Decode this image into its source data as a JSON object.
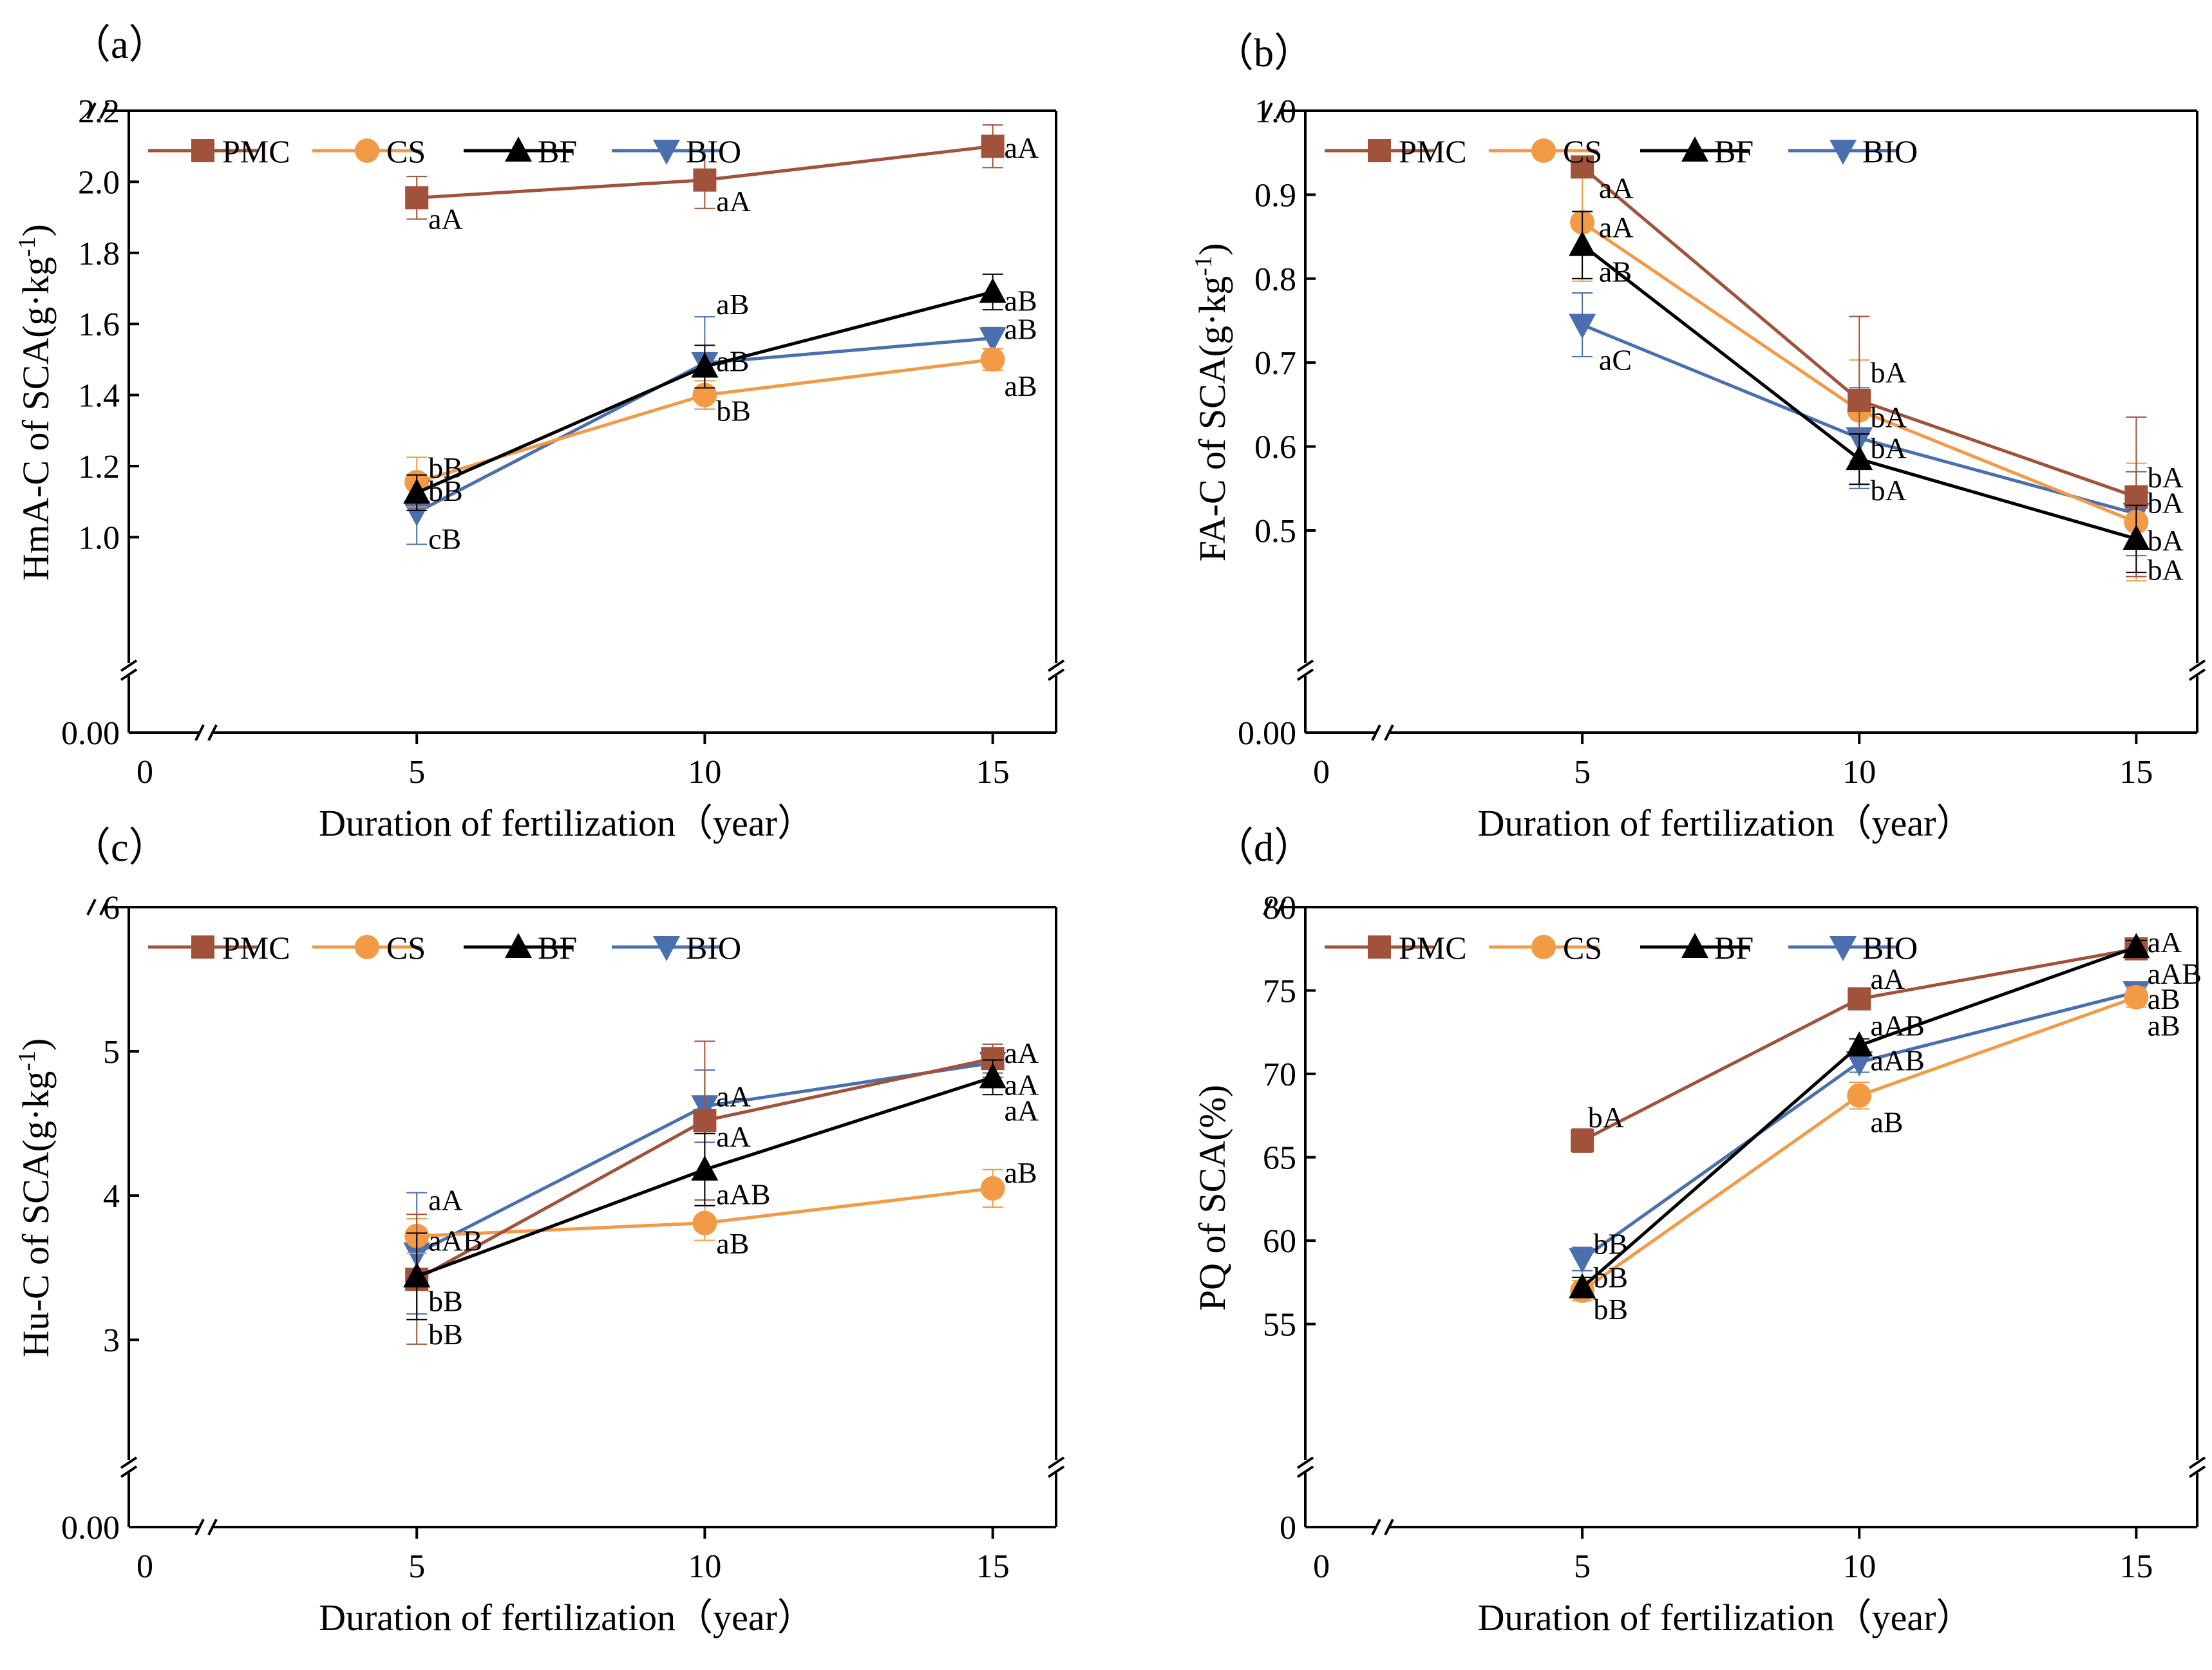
{
  "colors": {
    "PMC": "#A0523A",
    "CS": "#F29A45",
    "BF": "#000000",
    "BIO": "#4A6FAE"
  },
  "chart_data": [
    {
      "type": "line",
      "panel_label": "（a）",
      "xlabel": "Duration of  fertilization（year）",
      "ylabel": "HmA-C of SCA(g·kg",
      "ylabel_sup": "-1",
      "ylabel_close": ")",
      "x": [
        5,
        10,
        15
      ],
      "xlim": [
        0,
        16.1
      ],
      "xticks": [
        0,
        5,
        10,
        15
      ],
      "xtick_labels": [
        "0",
        "5",
        "10",
        "15"
      ],
      "ylim": [
        0.7,
        2.2
      ],
      "yticks": [
        1.0,
        1.2,
        1.4,
        1.6,
        1.8,
        2.0,
        2.2
      ],
      "ytick_labels": [
        "1.0",
        "1.2",
        "1.4",
        "1.6",
        "1.8",
        "2.0",
        "2.2"
      ],
      "y_zero_label": "0.00",
      "axis_break": true,
      "legend": "top-left",
      "series": [
        {
          "name": "PMC",
          "marker": "square",
          "values": [
            1.955,
            2.005,
            2.1
          ],
          "errors": [
            0.06,
            0.08,
            0.06
          ],
          "labels": [
            "aA",
            "aA",
            "aA"
          ]
        },
        {
          "name": "CS",
          "marker": "circle",
          "values": [
            1.155,
            1.4,
            1.5
          ],
          "errors": [
            0.07,
            0.04,
            0.03
          ],
          "labels": [
            "bB",
            "bB",
            "aB"
          ]
        },
        {
          "name": "BF",
          "marker": "triangle-up",
          "values": [
            1.125,
            1.48,
            1.69
          ],
          "errors": [
            0.05,
            0.06,
            0.05
          ],
          "labels": [
            "bB",
            "aB",
            "aB"
          ]
        },
        {
          "name": "BIO",
          "marker": "triangle-down",
          "values": [
            1.07,
            1.49,
            1.56
          ],
          "errors": [
            0.09,
            0.13,
            0.03
          ],
          "labels": [
            "cB",
            "aB",
            "aB"
          ]
        }
      ],
      "annotations": [
        {
          "text": "aA",
          "x": 5.2,
          "y": 1.9
        },
        {
          "text": "bB",
          "x": 5.2,
          "y": 1.2
        },
        {
          "text": "bB",
          "x": 5.2,
          "y": 1.135
        },
        {
          "text": "cB",
          "x": 5.2,
          "y": 1.0
        },
        {
          "text": "aA",
          "x": 10.2,
          "y": 1.95
        },
        {
          "text": "aB",
          "x": 10.2,
          "y": 1.66
        },
        {
          "text": "aB",
          "x": 10.2,
          "y": 1.5
        },
        {
          "text": "bB",
          "x": 10.2,
          "y": 1.36
        },
        {
          "text": "aA",
          "x": 15.2,
          "y": 2.1
        },
        {
          "text": "aB",
          "x": 15.2,
          "y": 1.67
        },
        {
          "text": "aB",
          "x": 15.2,
          "y": 1.59
        },
        {
          "text": "aB",
          "x": 15.2,
          "y": 1.43
        }
      ]
    },
    {
      "type": "line",
      "panel_label": "（b）",
      "xlabel": "Duration of  fertilization（year）",
      "ylabel": "FA-C of SCA(g·kg",
      "ylabel_sup": "-1",
      "ylabel_close": ")",
      "x": [
        5,
        10,
        15
      ],
      "xlim": [
        0,
        16.1
      ],
      "xticks": [
        0,
        5,
        10,
        15
      ],
      "xtick_labels": [
        "0",
        "5",
        "10",
        "15"
      ],
      "ylim": [
        0.365,
        1.0
      ],
      "yticks": [
        0.5,
        0.6,
        0.7,
        0.8,
        0.9,
        1.0
      ],
      "ytick_labels": [
        "0.5",
        "0.6",
        "0.7",
        "0.8",
        "0.9",
        "1.0"
      ],
      "y_zero_label": "0.00",
      "axis_break": true,
      "legend": "top-left",
      "series": [
        {
          "name": "PMC",
          "marker": "square",
          "values": [
            0.933,
            0.655,
            0.54
          ],
          "errors": [
            0.01,
            0.1,
            0.095
          ],
          "labels": [
            "aA",
            "bA",
            "bA"
          ]
        },
        {
          "name": "CS",
          "marker": "circle",
          "values": [
            0.867,
            0.643,
            0.51
          ],
          "errors": [
            0.07,
            0.06,
            0.07
          ],
          "labels": [
            "aA",
            "bA",
            "bA"
          ]
        },
        {
          "name": "BF",
          "marker": "triangle-up",
          "values": [
            0.84,
            0.585,
            0.49
          ],
          "errors": [
            0.04,
            0.03,
            0.04
          ],
          "labels": [
            "aB",
            "bA",
            "bA"
          ]
        },
        {
          "name": "BIO",
          "marker": "triangle-down",
          "values": [
            0.745,
            0.61,
            0.52
          ],
          "errors": [
            0.038,
            0.06,
            0.05
          ],
          "labels": [
            "aC",
            "bA",
            "bA"
          ]
        }
      ],
      "annotations": [
        {
          "text": "aA",
          "x": 5.3,
          "y": 0.91
        },
        {
          "text": "aA",
          "x": 5.3,
          "y": 0.863
        },
        {
          "text": "aB",
          "x": 5.3,
          "y": 0.81
        },
        {
          "text": "aC",
          "x": 5.3,
          "y": 0.705
        },
        {
          "text": "bA",
          "x": 10.2,
          "y": 0.69
        },
        {
          "text": "bA",
          "x": 10.2,
          "y": 0.637
        },
        {
          "text": "bA",
          "x": 10.2,
          "y": 0.6
        },
        {
          "text": "bA",
          "x": 10.2,
          "y": 0.55
        },
        {
          "text": "bA",
          "x": 15.2,
          "y": 0.565
        },
        {
          "text": "bA",
          "x": 15.2,
          "y": 0.535
        },
        {
          "text": "bA",
          "x": 15.2,
          "y": 0.49
        },
        {
          "text": "bA",
          "x": 15.2,
          "y": 0.455
        }
      ]
    },
    {
      "type": "line",
      "panel_label": "（c）",
      "xlabel": "Duration of  fertilization（year）",
      "ylabel": "Hu-C of SCA(g·kg",
      "ylabel_sup": "-1",
      "ylabel_close": ")",
      "x": [
        5,
        10,
        15
      ],
      "xlim": [
        0,
        16.1
      ],
      "xticks": [
        0,
        5,
        10,
        15
      ],
      "xtick_labels": [
        "0",
        "5",
        "10",
        "15"
      ],
      "ylim": [
        2.3,
        6.0
      ],
      "yticks": [
        3,
        4,
        5,
        6
      ],
      "ytick_labels": [
        "3",
        "4",
        "5",
        "6"
      ],
      "y_zero_label": "0.00",
      "axis_break": true,
      "legend": "top-left",
      "series": [
        {
          "name": "PMC",
          "marker": "square",
          "values": [
            3.42,
            4.52,
            4.95
          ],
          "errors": [
            0.45,
            0.55,
            0.1
          ],
          "labels": [
            "bB",
            "aA",
            "aA"
          ]
        },
        {
          "name": "CS",
          "marker": "circle",
          "values": [
            3.72,
            3.81,
            4.05
          ],
          "errors": [
            0.12,
            0.12,
            0.13
          ],
          "labels": [
            "aAB",
            "aB",
            "aB"
          ]
        },
        {
          "name": "BF",
          "marker": "triangle-up",
          "values": [
            3.44,
            4.18,
            4.82
          ],
          "errors": [
            0.3,
            0.25,
            0.12
          ],
          "labels": [
            "bB",
            "aAB",
            "aA"
          ]
        },
        {
          "name": "BIO",
          "marker": "triangle-down",
          "values": [
            3.6,
            4.62,
            4.92
          ],
          "errors": [
            0.42,
            0.25,
            0.1
          ],
          "labels": [
            "aA",
            "aA",
            "aA"
          ]
        }
      ],
      "annotations": [
        {
          "text": "aA",
          "x": 5.2,
          "y": 3.98
        },
        {
          "text": "aAB",
          "x": 5.2,
          "y": 3.7
        },
        {
          "text": "bB",
          "x": 5.2,
          "y": 3.28
        },
        {
          "text": "bB",
          "x": 5.2,
          "y": 3.05
        },
        {
          "text": "aA",
          "x": 10.2,
          "y": 4.7
        },
        {
          "text": "aA",
          "x": 10.2,
          "y": 4.42
        },
        {
          "text": "aAB",
          "x": 10.2,
          "y": 4.02
        },
        {
          "text": "aB",
          "x": 10.2,
          "y": 3.68
        },
        {
          "text": "aA",
          "x": 15.2,
          "y": 5.0
        },
        {
          "text": "aA",
          "x": 15.2,
          "y": 4.78
        },
        {
          "text": "aA",
          "x": 15.2,
          "y": 4.6
        },
        {
          "text": "aB",
          "x": 15.2,
          "y": 4.17
        }
      ]
    },
    {
      "type": "line",
      "panel_label": "（d）",
      "xlabel": "Duration of  fertilization（year）",
      "ylabel": "PQ of SCA(%)",
      "ylabel_sup": "",
      "ylabel_close": "",
      "x": [
        5,
        10,
        15
      ],
      "xlim": [
        0,
        16.1
      ],
      "xticks": [
        0,
        5,
        10,
        15
      ],
      "xtick_labels": [
        "0",
        "5",
        "10",
        "15"
      ],
      "ylim": [
        48.0,
        80.0
      ],
      "yticks": [
        55,
        60,
        65,
        70,
        75,
        80
      ],
      "ytick_labels": [
        "55",
        "60",
        "65",
        "70",
        "75",
        "80"
      ],
      "y_zero_label": "0",
      "axis_break": true,
      "legend": "top-left",
      "series": [
        {
          "name": "PMC",
          "marker": "square",
          "values": [
            66.0,
            74.5,
            77.5
          ],
          "errors": [
            0.7,
            0.4,
            0.4
          ],
          "labels": [
            "bA",
            "aA",
            "aA"
          ]
        },
        {
          "name": "CS",
          "marker": "circle",
          "values": [
            57.0,
            68.7,
            74.6
          ],
          "errors": [
            0.6,
            0.8,
            0.6
          ],
          "labels": [
            "bB",
            "aB",
            "aB"
          ]
        },
        {
          "name": "BF",
          "marker": "triangle-up",
          "values": [
            57.2,
            71.7,
            77.6
          ],
          "errors": [
            0.6,
            0.4,
            0.4
          ],
          "labels": [
            "bB",
            "aAB",
            "aAB"
          ]
        },
        {
          "name": "BIO",
          "marker": "triangle-down",
          "values": [
            58.9,
            70.7,
            74.9
          ],
          "errors": [
            0.7,
            0.6,
            0.5
          ],
          "labels": [
            "bB",
            "aAB",
            "aB"
          ]
        }
      ],
      "annotations": [
        {
          "text": "bA",
          "x": 5.1,
          "y": 67.5
        },
        {
          "text": "bB",
          "x": 5.2,
          "y": 59.9
        },
        {
          "text": "bB",
          "x": 5.2,
          "y": 57.9
        },
        {
          "text": "bB",
          "x": 5.2,
          "y": 56.0
        },
        {
          "text": "aA",
          "x": 10.2,
          "y": 75.8
        },
        {
          "text": "aAB",
          "x": 10.2,
          "y": 73.0
        },
        {
          "text": "aAB",
          "x": 10.2,
          "y": 70.9
        },
        {
          "text": "aB",
          "x": 10.2,
          "y": 67.2
        },
        {
          "text": "aA",
          "x": 15.2,
          "y": 78.0
        },
        {
          "text": "aAB",
          "x": 15.2,
          "y": 76.1
        },
        {
          "text": "aB",
          "x": 15.2,
          "y": 74.6
        },
        {
          "text": "aB",
          "x": 15.2,
          "y": 73.0
        }
      ]
    }
  ]
}
